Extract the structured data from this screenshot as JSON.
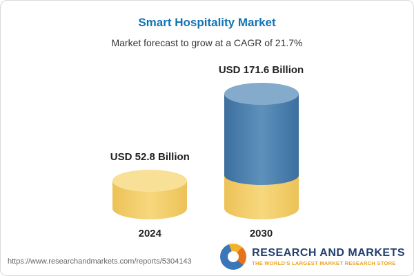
{
  "chart_data": {
    "type": "bar",
    "title": "Smart Hospitality Market",
    "subtitle": "Market forecast to grow at a CAGR of 21.7%",
    "categories": [
      "2024",
      "2030"
    ],
    "values": [
      52.8,
      171.6
    ],
    "value_labels": [
      "USD 52.8 Billion",
      "USD 171.6 Billion"
    ],
    "unit": "USD Billion",
    "cagr": "21.7%",
    "ylim": [
      0,
      180
    ],
    "grid": false,
    "legend": "none",
    "colors": {
      "bar_2024": "#f2cb63",
      "bar_2030_top_segment": "#4a7dab",
      "bar_2030_base_segment": "#f2cb63",
      "title_accent": "#1173b4"
    }
  },
  "footer": {
    "url": "https://www.researchandmarkets.com/reports/5304143",
    "brand": "RESEARCH AND MARKETS",
    "tagline": "THE WORLD'S LARGEST MARKET RESEARCH STORE"
  }
}
